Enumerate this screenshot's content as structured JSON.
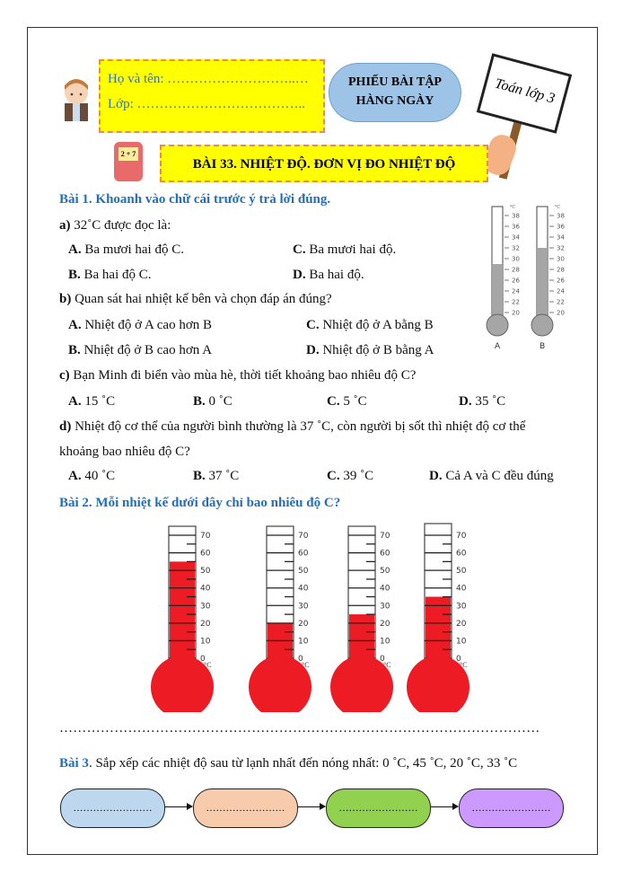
{
  "header": {
    "name_label": "Họ và tên: ………………………..…",
    "class_label": "Lớp: ………………………………..",
    "cloud_line1": "PHIẾU BÀI TẬP",
    "cloud_line2": "HÀNG NGÀY",
    "sign_text": "Toán lớp 3",
    "lesson_title": "BÀI 33. NHIỆT ĐỘ. ĐƠN VỊ ĐO NHIỆT ĐỘ",
    "notebook_text": "2 + 7"
  },
  "bai1": {
    "title": "Bài 1. Khoanh vào chữ cái trước ý trả lời đúng.",
    "a": {
      "prefix": "a)",
      "q": " 32˚C được đọc là:",
      "opts": [
        [
          "A.",
          "Ba mươi hai độ C."
        ],
        [
          "C.",
          "Ba mươi hai độ."
        ],
        [
          "B.",
          "Ba hai độ C."
        ],
        [
          "D.",
          "Ba hai độ."
        ]
      ]
    },
    "b": {
      "prefix": "b)",
      "q": " Quan sát hai nhiệt kế bên và chọn đáp án đúng?",
      "opts": [
        [
          "A.",
          "Nhiệt độ ở A cao hơn B"
        ],
        [
          "C.",
          "Nhiệt độ ở A bằng B"
        ],
        [
          "B.",
          "Nhiệt độ ở B cao hơn A"
        ],
        [
          "D.",
          "Nhiệt độ ở B bằng A"
        ]
      ]
    },
    "c": {
      "prefix": "c)",
      "q": " Bạn Minh đi biển vào mùa hè, thời tiết khoảng bao nhiêu độ C?",
      "opts": [
        [
          "A.",
          "15 ˚C"
        ],
        [
          "B.",
          "0 ˚C"
        ],
        [
          "C.",
          "5 ˚C"
        ],
        [
          "D.",
          "35 ˚C"
        ]
      ]
    },
    "d": {
      "prefix": "d)",
      "q": " Nhiệt độ cơ thể của người bình thường là 37 ˚C, còn người bị sốt thì nhiệt độ cơ thể",
      "q2": "khoảng bao nhiêu độ C?",
      "opts": [
        [
          "A.",
          "40 ˚C"
        ],
        [
          "B.",
          "37 ˚C"
        ],
        [
          "C.",
          "39 ˚C"
        ],
        [
          "D.",
          "Cả A và C đều đúng"
        ]
      ]
    },
    "thermometers": {
      "unit": "°C",
      "ticks": [
        "38",
        "36",
        "34",
        "32",
        "30",
        "28",
        "26",
        "24",
        "22",
        "20"
      ],
      "labels": [
        "A",
        "B"
      ],
      "values": [
        29,
        32
      ],
      "color": "#a6a6a6"
    }
  },
  "bai2": {
    "title": "Bài 2. Mỗi nhiệt kế dưới đây chỉ bao nhiêu độ C?",
    "ticks": [
      "70",
      "60",
      "50",
      "40",
      "30",
      "20",
      "10",
      "0"
    ],
    "unit": "°C",
    "values": [
      55,
      20,
      25,
      35
    ],
    "color": "#ed1c24",
    "answer_line": "……………………………………………………………………………………………"
  },
  "bai3": {
    "label": "Bài 3",
    "text": ". Sắp xếp các nhiệt độ sau từ lạnh nhất đến nóng nhất: 0 ˚C, 45 ˚C, 20 ˚C, 33 ˚C",
    "boxes": [
      {
        "text": "……………………",
        "color": "#bdd7ee"
      },
      {
        "text": "……………………",
        "color": "#f8cbad"
      },
      {
        "text": "……………………",
        "color": "#92d050"
      },
      {
        "text": "……………………",
        "color": "#cc99ff"
      }
    ]
  }
}
